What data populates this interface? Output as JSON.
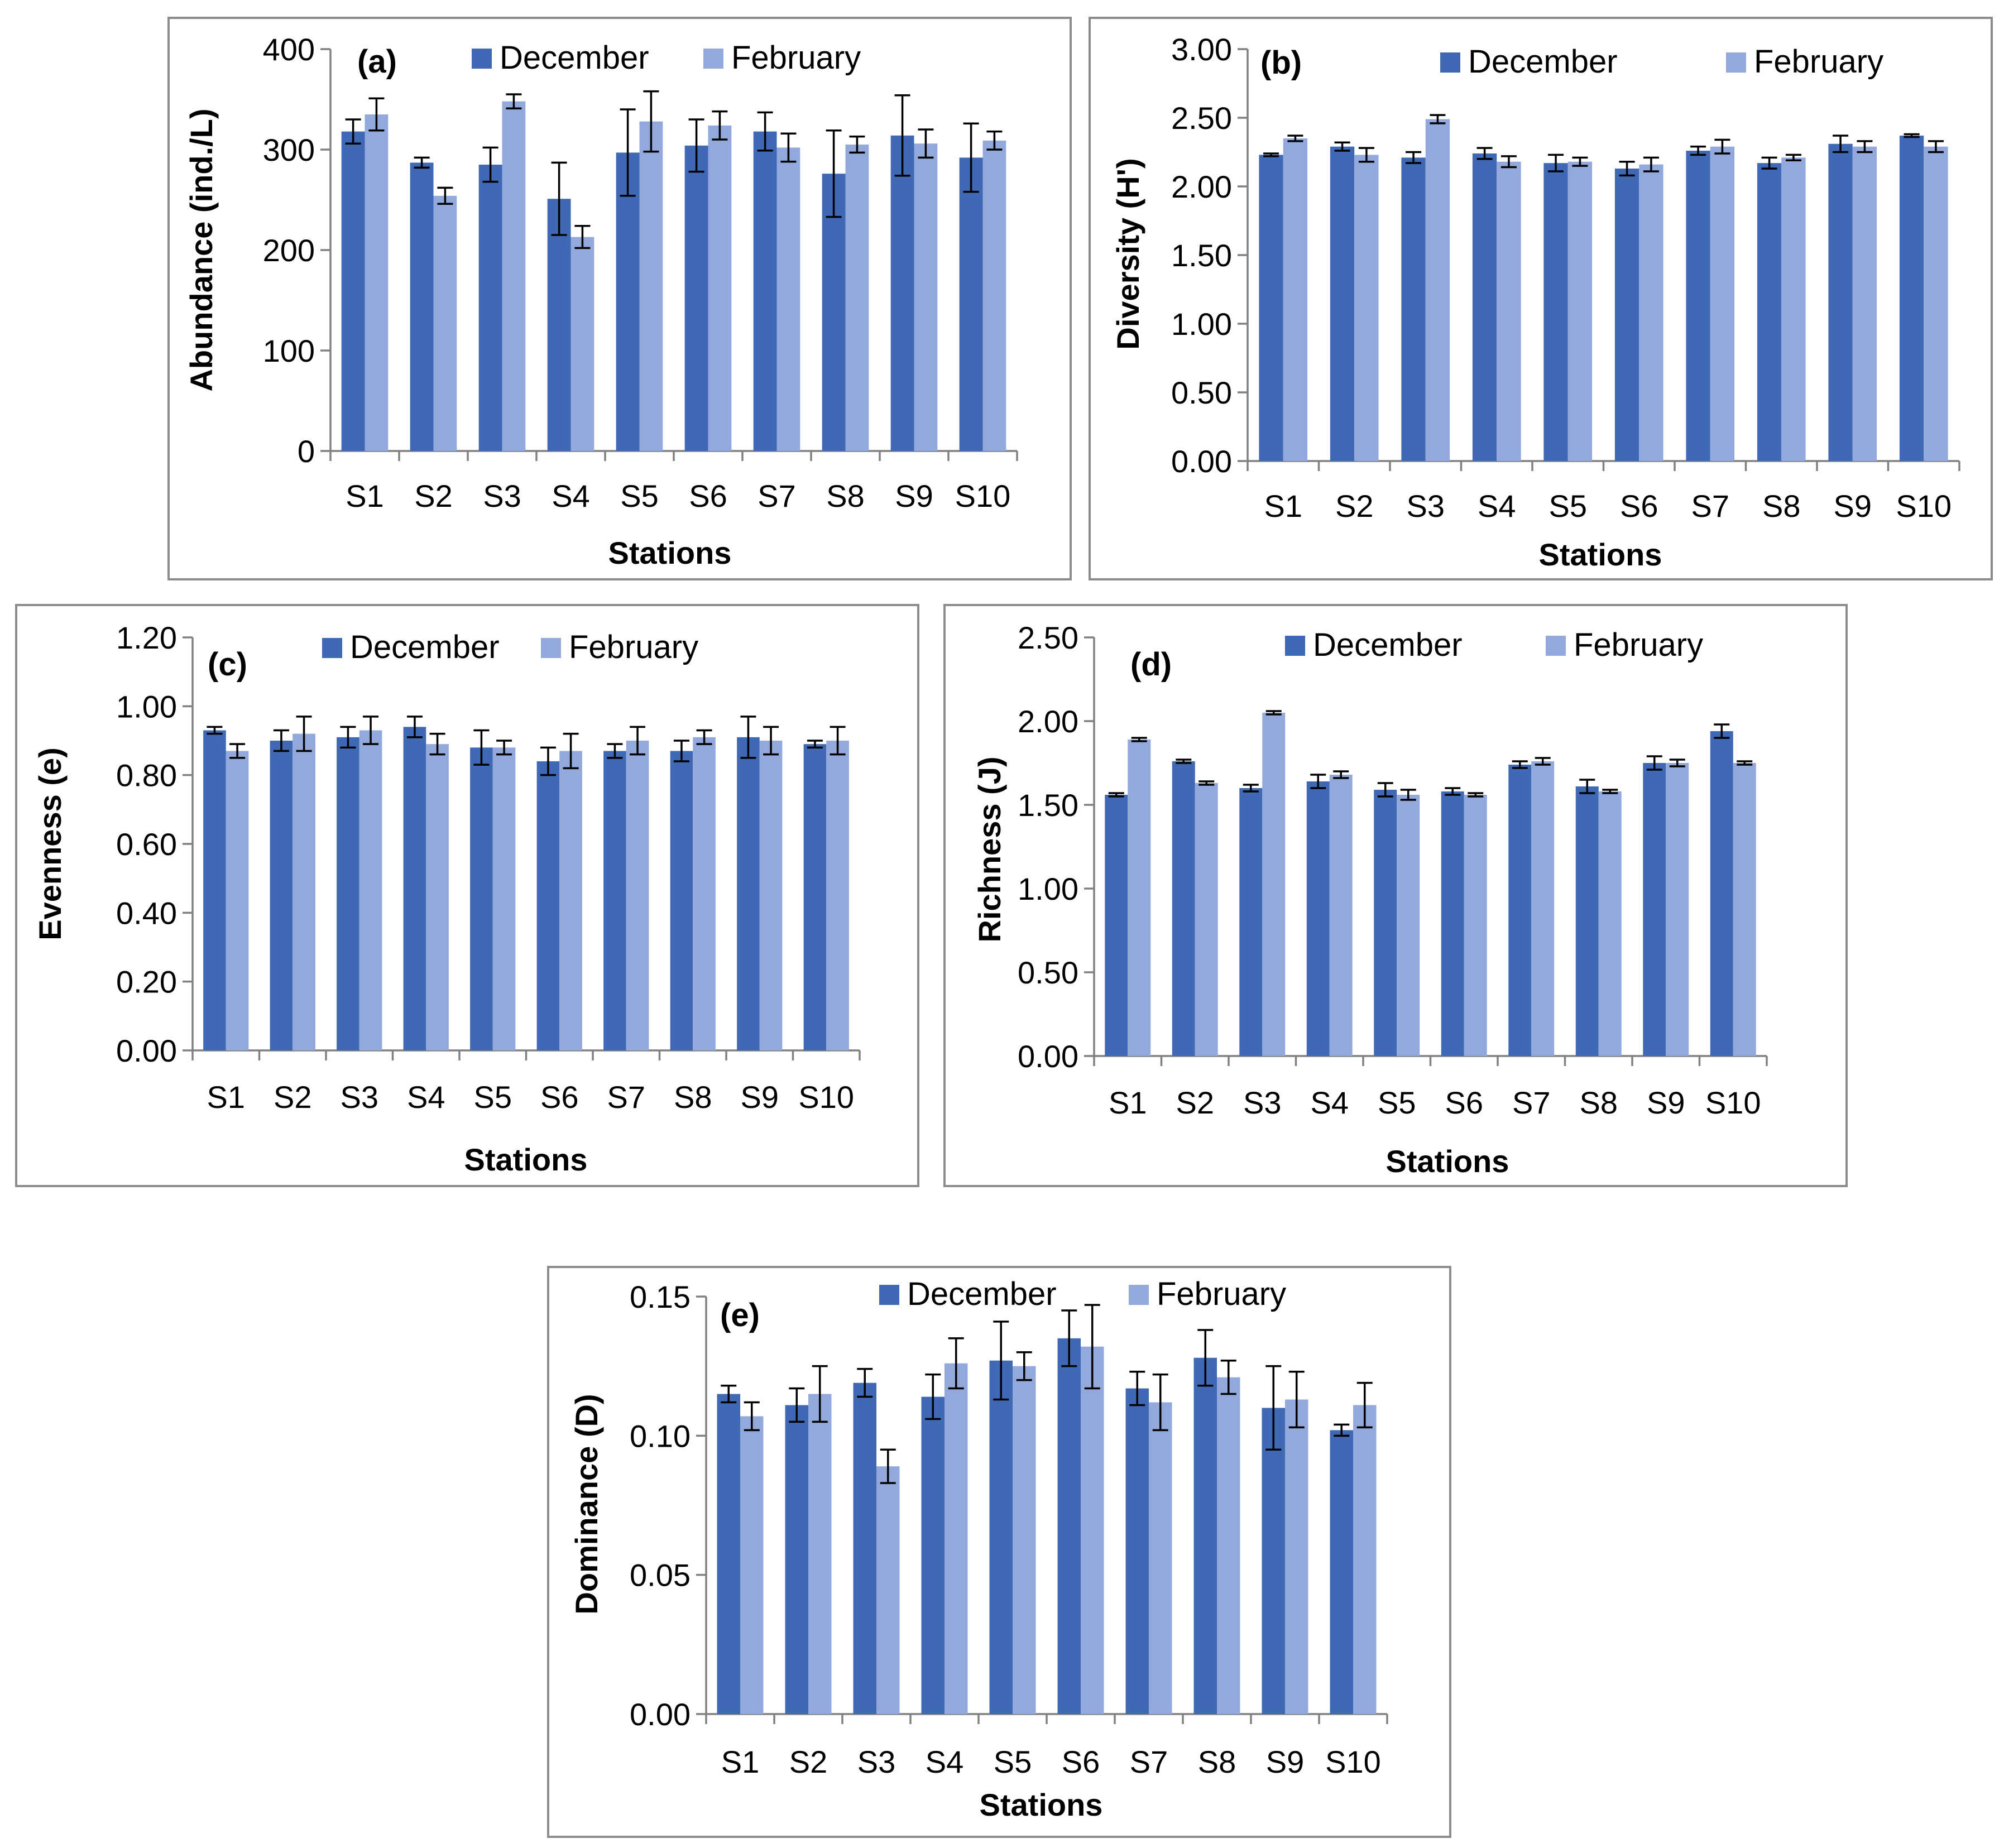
{
  "colors": {
    "december": "#4069b5",
    "february": "#93a9dc"
  },
  "chart_data": [
    {
      "type": "bar",
      "panel_label": "(a)",
      "categories": [
        "S1",
        "S2",
        "S3",
        "S4",
        "S5",
        "S6",
        "S7",
        "S8",
        "S9",
        "S10"
      ],
      "xlabel": "Stations",
      "ylabel": "Abundance (ind./L)",
      "ylim": [
        0,
        400
      ],
      "yticks": [
        0,
        100,
        200,
        300,
        400
      ],
      "ytick_labels": [
        "0",
        "100",
        "200",
        "300",
        "400"
      ],
      "legend": [
        "December",
        "February"
      ],
      "series": [
        {
          "name": "December",
          "values": [
            318,
            287,
            285,
            251,
            297,
            304,
            318,
            276,
            314,
            292
          ],
          "errors": [
            12,
            5,
            17,
            36,
            43,
            26,
            19,
            43,
            40,
            34
          ]
        },
        {
          "name": "February",
          "values": [
            335,
            254,
            348,
            213,
            328,
            324,
            302,
            305,
            306,
            309
          ],
          "errors": [
            16,
            8,
            7,
            11,
            30,
            14,
            14,
            8,
            14,
            9
          ]
        }
      ]
    },
    {
      "type": "bar",
      "panel_label": "(b)",
      "categories": [
        "S1",
        "S2",
        "S3",
        "S4",
        "S5",
        "S6",
        "S7",
        "S8",
        "S9",
        "S10"
      ],
      "xlabel": "Stations",
      "ylabel": "Diversity (H')",
      "ylim": [
        0,
        3
      ],
      "yticks": [
        0,
        0.5,
        1,
        1.5,
        2,
        2.5,
        3
      ],
      "ytick_labels": [
        "0.00",
        "0.50",
        "1.00",
        "1.50",
        "2.00",
        "2.50",
        "3.00"
      ],
      "legend": [
        "December",
        "February"
      ],
      "series": [
        {
          "name": "December",
          "values": [
            2.23,
            2.29,
            2.21,
            2.24,
            2.17,
            2.13,
            2.26,
            2.17,
            2.31,
            2.37
          ],
          "errors": [
            0.01,
            0.03,
            0.04,
            0.04,
            0.06,
            0.05,
            0.03,
            0.04,
            0.06,
            0.01
          ]
        },
        {
          "name": "February",
          "values": [
            2.35,
            2.23,
            2.49,
            2.18,
            2.18,
            2.16,
            2.29,
            2.21,
            2.29,
            2.29
          ],
          "errors": [
            0.02,
            0.05,
            0.03,
            0.04,
            0.03,
            0.05,
            0.05,
            0.02,
            0.04,
            0.04
          ]
        }
      ]
    },
    {
      "type": "bar",
      "panel_label": "(c)",
      "categories": [
        "S1",
        "S2",
        "S3",
        "S4",
        "S5",
        "S6",
        "S7",
        "S8",
        "S9",
        "S10"
      ],
      "xlabel": "Stations",
      "ylabel": "Evenness (e)",
      "ylim": [
        0,
        1.2
      ],
      "yticks": [
        0,
        0.2,
        0.4,
        0.6,
        0.8,
        1.0,
        1.2
      ],
      "ytick_labels": [
        "0.00",
        "0.20",
        "0.40",
        "0.60",
        "0.80",
        "1.00",
        "1.20"
      ],
      "legend": [
        "December",
        "February"
      ],
      "series": [
        {
          "name": "December",
          "values": [
            0.93,
            0.9,
            0.91,
            0.94,
            0.88,
            0.84,
            0.87,
            0.87,
            0.91,
            0.89
          ],
          "errors": [
            0.01,
            0.03,
            0.03,
            0.03,
            0.05,
            0.04,
            0.02,
            0.03,
            0.06,
            0.01
          ]
        },
        {
          "name": "February",
          "values": [
            0.87,
            0.92,
            0.93,
            0.89,
            0.88,
            0.87,
            0.9,
            0.91,
            0.9,
            0.9
          ],
          "errors": [
            0.02,
            0.05,
            0.04,
            0.03,
            0.02,
            0.05,
            0.04,
            0.02,
            0.04,
            0.04
          ]
        }
      ]
    },
    {
      "type": "bar",
      "panel_label": "(d)",
      "categories": [
        "S1",
        "S2",
        "S3",
        "S4",
        "S5",
        "S6",
        "S7",
        "S8",
        "S9",
        "S10"
      ],
      "xlabel": "Stations",
      "ylabel": "Richness (J)",
      "ylim": [
        0,
        2.5
      ],
      "yticks": [
        0,
        0.5,
        1,
        1.5,
        2,
        2.5
      ],
      "ytick_labels": [
        "0.00",
        "0.50",
        "1.00",
        "1.50",
        "2.00",
        "2.50"
      ],
      "legend": [
        "December",
        "February"
      ],
      "series": [
        {
          "name": "December",
          "values": [
            1.56,
            1.76,
            1.6,
            1.64,
            1.59,
            1.58,
            1.74,
            1.61,
            1.75,
            1.94
          ],
          "errors": [
            0.01,
            0.01,
            0.02,
            0.04,
            0.04,
            0.02,
            0.02,
            0.04,
            0.04,
            0.04
          ]
        },
        {
          "name": "February",
          "values": [
            1.89,
            1.63,
            2.05,
            1.68,
            1.56,
            1.56,
            1.76,
            1.58,
            1.75,
            1.75
          ],
          "errors": [
            0.01,
            0.01,
            0.01,
            0.02,
            0.03,
            0.01,
            0.02,
            0.01,
            0.02,
            0.01
          ]
        }
      ]
    },
    {
      "type": "bar",
      "panel_label": "(e)",
      "categories": [
        "S1",
        "S2",
        "S3",
        "S4",
        "S5",
        "S6",
        "S7",
        "S8",
        "S9",
        "S10"
      ],
      "xlabel": "Stations",
      "ylabel": "Dominance (D)",
      "ylim": [
        0,
        0.15
      ],
      "yticks": [
        0,
        0.05,
        0.1,
        0.15
      ],
      "ytick_labels": [
        "0.00",
        "0.05",
        "0.10",
        "0.15"
      ],
      "legend": [
        "December",
        "February"
      ],
      "series": [
        {
          "name": "December",
          "values": [
            0.115,
            0.111,
            0.119,
            0.114,
            0.127,
            0.135,
            0.117,
            0.128,
            0.11,
            0.102
          ],
          "errors": [
            0.003,
            0.006,
            0.005,
            0.008,
            0.014,
            0.01,
            0.006,
            0.01,
            0.015,
            0.002
          ]
        },
        {
          "name": "February",
          "values": [
            0.107,
            0.115,
            0.089,
            0.126,
            0.125,
            0.132,
            0.112,
            0.121,
            0.113,
            0.111
          ],
          "errors": [
            0.005,
            0.01,
            0.006,
            0.009,
            0.005,
            0.015,
            0.01,
            0.006,
            0.01,
            0.008
          ]
        }
      ]
    }
  ]
}
